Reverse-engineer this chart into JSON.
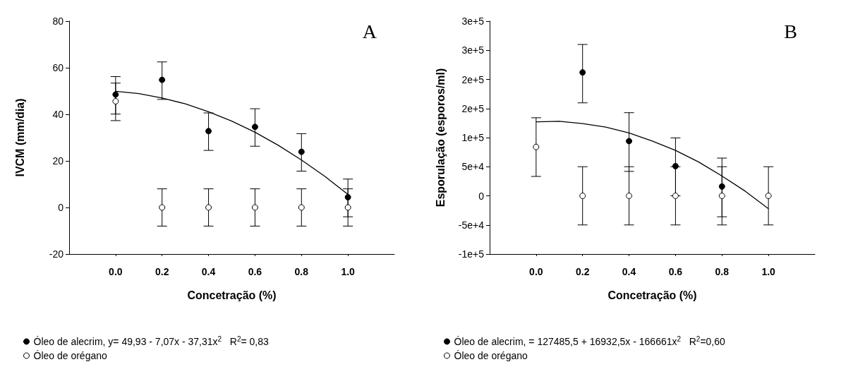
{
  "chart_data": [
    {
      "type": "scatter",
      "xlabel": "Concetração (%)",
      "ylabel": "IVCM (mm/dia)",
      "annotations": [
        "A"
      ],
      "x": [
        0,
        0.2,
        0.4,
        0.6,
        0.8,
        1.0
      ],
      "xlim": [
        -0.2,
        1.2
      ],
      "xticks": [
        {
          "value": 0,
          "label": "0.0"
        },
        {
          "value": 0.2,
          "label": "0.2"
        },
        {
          "value": 0.4,
          "label": "0.4"
        },
        {
          "value": 0.6,
          "label": "0.6"
        },
        {
          "value": 0.8,
          "label": "0.8"
        },
        {
          "value": 1,
          "label": "1.0"
        }
      ],
      "ylim": [
        -20,
        80
      ],
      "yticks": [
        -20,
        0,
        20,
        40,
        60,
        80
      ],
      "grid": false,
      "legend": "bottom",
      "marker": "circle",
      "series": [
        {
          "name": "Óleo de alecrim, y= 49,93 - 7,07x - 37,31x$^{2}$   R$^{2}$= 0,83",
          "color": "#000000",
          "values": [
            48.5,
            54.8,
            32.8,
            34.6,
            23.9,
            4.4
          ],
          "errors": [
            [
              37.3,
              56.2
            ],
            [
              46.4,
              62.5
            ],
            [
              24.5,
              40.6
            ],
            [
              26.3,
              42.4
            ],
            [
              15.6,
              31.7
            ],
            [
              -4.0,
              12.2
            ]
          ]
        },
        {
          "name": "Óleo de orégano",
          "color": "#ffffff",
          "values": [
            45.6,
            0,
            0,
            0,
            0,
            0
          ],
          "errors": [
            [
              40.1,
              53.4
            ],
            8,
            8,
            8,
            8,
            8
          ]
        },
        {
          "type": "line",
          "color": "#000000",
          "marker": "none",
          "x": [
            0,
            0.1,
            0.2,
            0.3,
            0.4,
            0.5,
            0.6,
            0.7,
            0.8,
            0.9,
            1.0
          ],
          "values": [
            49.9,
            48.9,
            47.0,
            44.5,
            41.1,
            37.1,
            32.3,
            26.7,
            20.4,
            13.4,
            5.6
          ]
        }
      ]
    },
    {
      "type": "scatter",
      "xlabel": "Concetração (%)",
      "ylabel": "Esporulação (esporos/ml)",
      "annotations": [
        "B"
      ],
      "x": [
        0,
        0.2,
        0.4,
        0.6,
        0.8,
        1.0
      ],
      "xlim": [
        -0.2,
        1.2
      ],
      "xticks": [
        {
          "value": 0,
          "label": "0.0"
        },
        {
          "value": 0.2,
          "label": "0.2"
        },
        {
          "value": 0.4,
          "label": "0.4"
        },
        {
          "value": 0.6,
          "label": "0.6"
        },
        {
          "value": 0.8,
          "label": "0.8"
        },
        {
          "value": 1,
          "label": "1.0"
        }
      ],
      "ylim": [
        -100000,
        300000
      ],
      "yticks": [
        {
          "value": -100000,
          "label": "-1e+5"
        },
        {
          "value": -50000,
          "label": "-5e+4"
        },
        0,
        {
          "value": 50000,
          "label": "5e+4"
        },
        {
          "value": 100000,
          "label": "1e+5"
        },
        {
          "value": 150000,
          "label": "2e+5"
        },
        {
          "value": 200000,
          "label": "2e+5"
        },
        {
          "value": 250000,
          "label": "3e+5"
        },
        {
          "value": 300000,
          "label": "3e+5"
        }
      ],
      "grid": false,
      "legend": "bottom",
      "marker": "circle",
      "series": [
        {
          "name": "Óleo de alecrim, = 127485,5 + 16932,5x - 166661x$^{2}$   R$^{2}$=0,60",
          "color": "#000000",
          "values": [
            null,
            212000,
            94000,
            51000,
            16000,
            null
          ],
          "errors": [
            null,
            [
              159700,
              260000
            ],
            [
              42000,
              142800
            ],
            [
              0,
              99500
            ],
            [
              -36000,
              64800
            ],
            null
          ]
        },
        {
          "name": "Óleo de orégano",
          "color": "#ffffff",
          "values": [
            84000,
            0,
            0,
            0,
            0,
            0
          ],
          "errors": [
            [
              33300,
              134100
            ],
            50000,
            50000,
            50000,
            50000,
            50000
          ]
        },
        {
          "type": "line",
          "color": "#000000",
          "marker": "none",
          "x": [
            0,
            0.1,
            0.2,
            0.3,
            0.4,
            0.5,
            0.6,
            0.7,
            0.8,
            0.9,
            1.0
          ],
          "values": [
            127000,
            128000,
            124000,
            118000,
            108000,
            94000,
            78000,
            58000,
            34000,
            8000,
            -22000
          ]
        }
      ]
    }
  ]
}
